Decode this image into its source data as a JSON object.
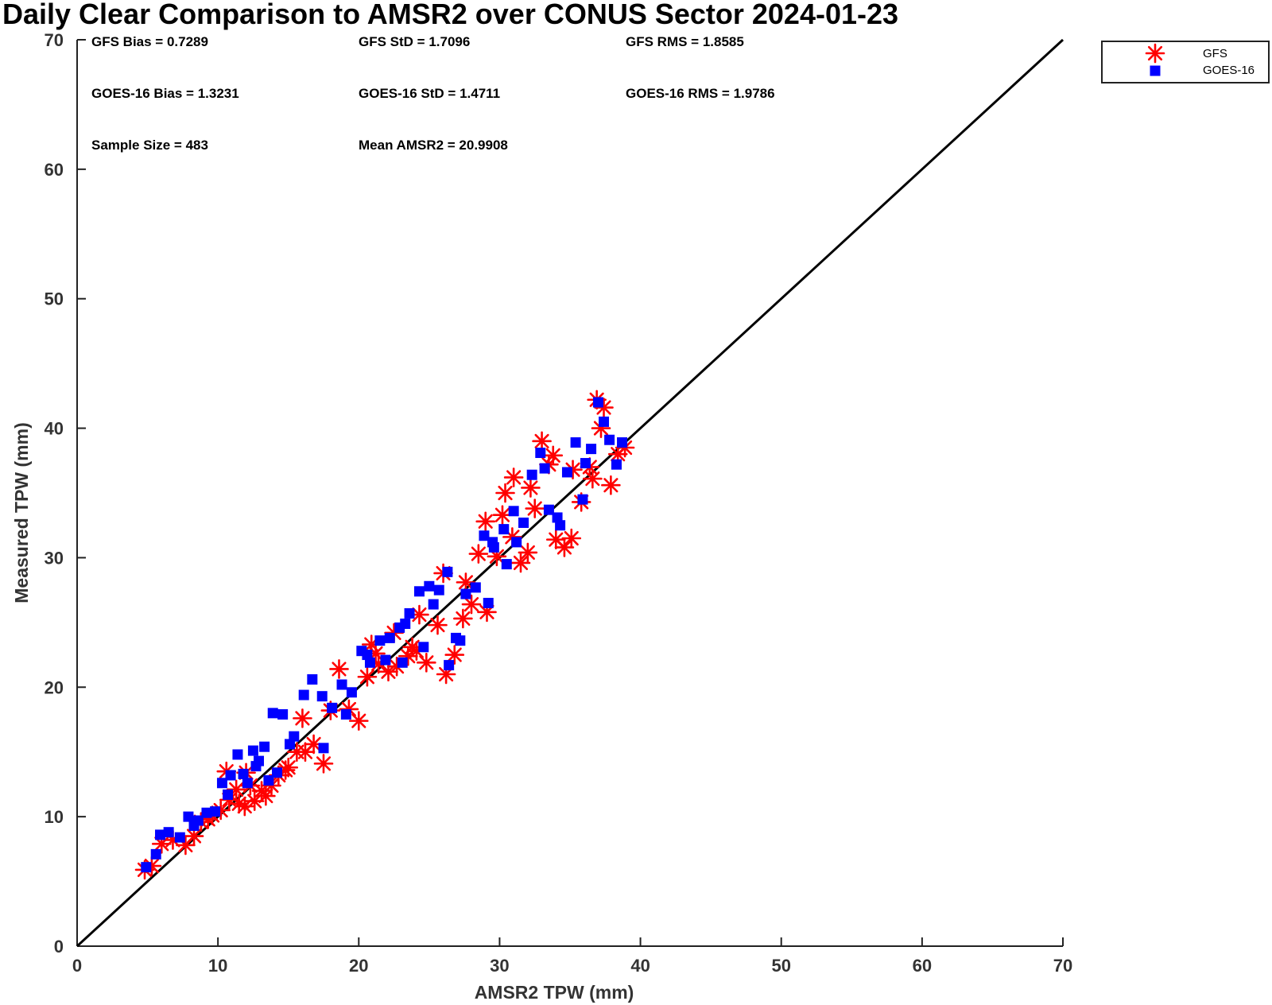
{
  "chart_data": {
    "type": "scatter",
    "title": "Daily Clear Comparison to AMSR2 over CONUS Sector 2024-01-23",
    "xlabel": "AMSR2 TPW (mm)",
    "ylabel": "Measured TPW (mm)",
    "xlim": [
      0,
      70
    ],
    "ylim": [
      0,
      70
    ],
    "xticks": [
      0,
      10,
      20,
      30,
      40,
      50,
      60,
      70
    ],
    "yticks": [
      0,
      10,
      20,
      30,
      40,
      50,
      60,
      70
    ],
    "grid": false,
    "legend_position": "outside top-right",
    "reference_line": {
      "label": "1:1 line",
      "from": [
        0,
        0
      ],
      "to": [
        70,
        70
      ],
      "color": "#000000"
    },
    "stats": {
      "gfs_bias": "GFS Bias = 0.7289",
      "gfs_std": "GFS StD = 1.7096",
      "gfs_rms": "GFS RMS = 1.8585",
      "goes_bias": "GOES-16 Bias = 1.3231",
      "goes_std": "GOES-16 StD = 1.4711",
      "goes_rms": "GOES-16 RMS = 1.9786",
      "sample_size": "Sample Size = 483",
      "mean_amsr2": "Mean AMSR2 = 20.9908"
    },
    "series": [
      {
        "name": "GFS",
        "marker": "asterisk",
        "color": "#ff0000",
        "points": [
          [
            4.8,
            5.9
          ],
          [
            5.3,
            6.2
          ],
          [
            6.0,
            7.9
          ],
          [
            6.8,
            8.2
          ],
          [
            7.7,
            7.8
          ],
          [
            8.3,
            8.5
          ],
          [
            8.8,
            9.6
          ],
          [
            9.6,
            10.1
          ],
          [
            10.2,
            10.5
          ],
          [
            10.8,
            11.3
          ],
          [
            11.3,
            12.1
          ],
          [
            11.9,
            10.8
          ],
          [
            12.6,
            11.2
          ],
          [
            13.1,
            12.0
          ],
          [
            13.8,
            12.4
          ],
          [
            14.3,
            13.2
          ],
          [
            15.0,
            13.8
          ],
          [
            15.6,
            15.0
          ],
          [
            16.2,
            15.0
          ],
          [
            16.8,
            15.6
          ],
          [
            17.5,
            14.1
          ],
          [
            18.0,
            18.2
          ],
          [
            18.6,
            21.4
          ],
          [
            19.3,
            18.3
          ],
          [
            20.0,
            17.4
          ],
          [
            20.6,
            20.8
          ],
          [
            21.4,
            21.8
          ],
          [
            22.1,
            21.2
          ],
          [
            22.7,
            21.6
          ],
          [
            23.5,
            22.4
          ],
          [
            24.1,
            22.8
          ],
          [
            24.8,
            21.9
          ],
          [
            25.6,
            24.8
          ],
          [
            26.2,
            21.0
          ],
          [
            26.8,
            22.5
          ],
          [
            27.4,
            25.3
          ],
          [
            28.0,
            26.4
          ],
          [
            28.5,
            30.3
          ],
          [
            29.1,
            25.8
          ],
          [
            29.0,
            32.8
          ],
          [
            29.8,
            30.1
          ],
          [
            30.4,
            35.0
          ],
          [
            30.9,
            31.6
          ],
          [
            31.5,
            29.6
          ],
          [
            32.0,
            30.4
          ],
          [
            32.5,
            33.8
          ],
          [
            33.0,
            39.0
          ],
          [
            33.5,
            37.2
          ],
          [
            34.0,
            31.4
          ],
          [
            34.6,
            30.8
          ],
          [
            35.1,
            31.5
          ],
          [
            35.8,
            34.3
          ],
          [
            36.4,
            37.0
          ],
          [
            36.9,
            42.2
          ],
          [
            37.4,
            41.6
          ],
          [
            37.9,
            35.6
          ],
          [
            38.4,
            38.0
          ],
          [
            38.9,
            38.5
          ],
          [
            32.2,
            35.4
          ],
          [
            31.0,
            36.2
          ],
          [
            12.0,
            13.4
          ],
          [
            11.5,
            11.0
          ],
          [
            10.6,
            13.5
          ],
          [
            13.4,
            11.6
          ],
          [
            14.8,
            13.6
          ],
          [
            16.0,
            17.6
          ],
          [
            22.5,
            24.2
          ],
          [
            23.8,
            23.1
          ],
          [
            21.2,
            22.6
          ],
          [
            26.0,
            28.8
          ],
          [
            27.6,
            28.1
          ],
          [
            33.8,
            37.9
          ],
          [
            36.6,
            36.1
          ],
          [
            37.2,
            40.0
          ],
          [
            35.2,
            36.8
          ],
          [
            12.3,
            12.4
          ],
          [
            9.3,
            9.8
          ],
          [
            20.9,
            23.3
          ],
          [
            24.3,
            25.6
          ],
          [
            30.2,
            33.3
          ]
        ]
      },
      {
        "name": "GOES-16",
        "marker": "square",
        "color": "#0000ff",
        "points": [
          [
            4.9,
            6.1
          ],
          [
            5.6,
            7.1
          ],
          [
            5.9,
            8.6
          ],
          [
            6.5,
            8.8
          ],
          [
            7.3,
            8.4
          ],
          [
            7.9,
            10.0
          ],
          [
            8.6,
            9.7
          ],
          [
            9.2,
            10.3
          ],
          [
            9.8,
            10.4
          ],
          [
            10.3,
            12.6
          ],
          [
            10.9,
            13.2
          ],
          [
            11.4,
            14.8
          ],
          [
            12.1,
            12.6
          ],
          [
            12.7,
            13.9
          ],
          [
            13.3,
            15.4
          ],
          [
            13.9,
            18.0
          ],
          [
            14.6,
            17.9
          ],
          [
            15.4,
            16.2
          ],
          [
            16.1,
            19.4
          ],
          [
            16.7,
            20.6
          ],
          [
            17.4,
            19.3
          ],
          [
            17.5,
            15.3
          ],
          [
            18.1,
            18.4
          ],
          [
            18.8,
            20.2
          ],
          [
            19.5,
            19.6
          ],
          [
            20.2,
            22.8
          ],
          [
            20.8,
            21.9
          ],
          [
            21.5,
            23.6
          ],
          [
            22.2,
            23.8
          ],
          [
            22.9,
            24.6
          ],
          [
            23.6,
            25.7
          ],
          [
            24.3,
            27.4
          ],
          [
            25.0,
            27.8
          ],
          [
            25.7,
            27.5
          ],
          [
            26.3,
            28.9
          ],
          [
            26.4,
            21.7
          ],
          [
            26.9,
            23.8
          ],
          [
            27.6,
            27.2
          ],
          [
            28.3,
            27.7
          ],
          [
            28.9,
            31.7
          ],
          [
            29.2,
            26.5
          ],
          [
            29.6,
            30.8
          ],
          [
            30.3,
            32.2
          ],
          [
            30.5,
            29.5
          ],
          [
            31.0,
            33.6
          ],
          [
            31.7,
            32.7
          ],
          [
            32.3,
            36.4
          ],
          [
            32.9,
            38.1
          ],
          [
            33.5,
            33.7
          ],
          [
            34.1,
            33.1
          ],
          [
            34.8,
            36.6
          ],
          [
            35.4,
            38.9
          ],
          [
            35.9,
            34.5
          ],
          [
            36.5,
            38.4
          ],
          [
            37.0,
            42.0
          ],
          [
            37.4,
            40.5
          ],
          [
            37.8,
            39.1
          ],
          [
            38.3,
            37.2
          ],
          [
            38.7,
            38.9
          ],
          [
            31.2,
            31.2
          ],
          [
            10.7,
            11.7
          ],
          [
            11.8,
            13.3
          ],
          [
            12.9,
            14.3
          ],
          [
            13.6,
            12.8
          ],
          [
            14.2,
            13.4
          ],
          [
            15.1,
            15.6
          ],
          [
            19.1,
            17.9
          ],
          [
            21.9,
            22.1
          ],
          [
            23.1,
            21.9
          ],
          [
            24.6,
            23.1
          ],
          [
            25.3,
            26.4
          ],
          [
            27.2,
            23.6
          ],
          [
            29.5,
            31.2
          ],
          [
            33.2,
            36.9
          ],
          [
            36.1,
            37.3
          ],
          [
            34.3,
            32.5
          ],
          [
            12.5,
            15.1
          ],
          [
            20.6,
            22.5
          ],
          [
            23.3,
            24.9
          ],
          [
            8.3,
            9.3
          ]
        ]
      }
    ]
  }
}
